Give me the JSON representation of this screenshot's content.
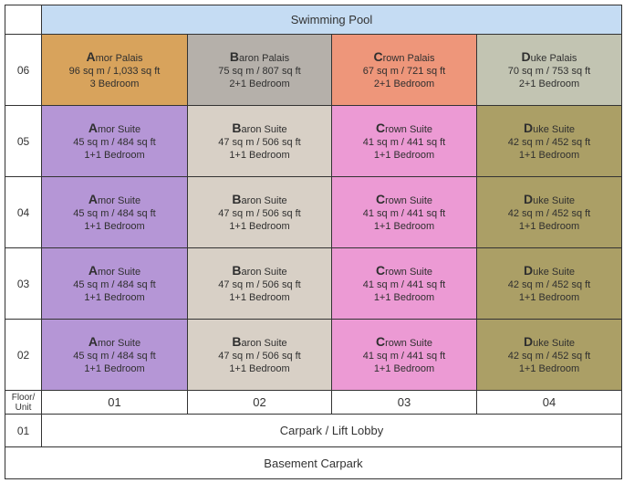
{
  "pool_label": "Swimming Pool",
  "floors": [
    "06",
    "05",
    "04",
    "03",
    "02"
  ],
  "floor_unit_header": [
    "Floor/",
    "Unit"
  ],
  "unit_numbers": [
    "01",
    "02",
    "03",
    "04"
  ],
  "rows": [
    [
      {
        "initial": "A",
        "rest": "mor Palais",
        "size": "96 sq m / 1,033 sq ft",
        "bedrooms": "3 Bedroom",
        "color": "#d8a35c"
      },
      {
        "initial": "B",
        "rest": "aron Palais",
        "size": "75 sq m / 807 sq ft",
        "bedrooms": "2+1 Bedroom",
        "color": "#b5b0aa"
      },
      {
        "initial": "C",
        "rest": "rown Palais",
        "size": "67 sq m / 721 sq ft",
        "bedrooms": "2+1 Bedroom",
        "color": "#ee967a"
      },
      {
        "initial": "D",
        "rest": "uke Palais",
        "size": "70 sq m / 753 sq ft",
        "bedrooms": "2+1 Bedroom",
        "color": "#c2c4b2"
      }
    ],
    [
      {
        "initial": "A",
        "rest": "mor Suite",
        "size": "45 sq m / 484 sq ft",
        "bedrooms": "1+1 Bedroom",
        "color": "#b596d6"
      },
      {
        "initial": "B",
        "rest": "aron Suite",
        "size": "47 sq m / 506 sq ft",
        "bedrooms": "1+1 Bedroom",
        "color": "#d8d0c6"
      },
      {
        "initial": "C",
        "rest": "rown Suite",
        "size": "41 sq m / 441 sq ft",
        "bedrooms": "1+1 Bedroom",
        "color": "#ec9ad4"
      },
      {
        "initial": "D",
        "rest": "uke Suite",
        "size": "42 sq m / 452 sq ft",
        "bedrooms": "1+1 Bedroom",
        "color": "#ab9f66"
      }
    ],
    [
      {
        "initial": "A",
        "rest": "mor Suite",
        "size": "45 sq m / 484 sq ft",
        "bedrooms": "1+1 Bedroom",
        "color": "#b596d6"
      },
      {
        "initial": "B",
        "rest": "aron Suite",
        "size": "47 sq m / 506 sq ft",
        "bedrooms": "1+1 Bedroom",
        "color": "#d8d0c6"
      },
      {
        "initial": "C",
        "rest": "rown Suite",
        "size": "41 sq m / 441 sq ft",
        "bedrooms": "1+1 Bedroom",
        "color": "#ec9ad4"
      },
      {
        "initial": "D",
        "rest": "uke Suite",
        "size": "42 sq m / 452 sq ft",
        "bedrooms": "1+1 Bedroom",
        "color": "#ab9f66"
      }
    ],
    [
      {
        "initial": "A",
        "rest": "mor Suite",
        "size": "45 sq m / 484 sq ft",
        "bedrooms": "1+1 Bedroom",
        "color": "#b596d6"
      },
      {
        "initial": "B",
        "rest": "aron Suite",
        "size": "47 sq m / 506 sq ft",
        "bedrooms": "1+1 Bedroom",
        "color": "#d8d0c6"
      },
      {
        "initial": "C",
        "rest": "rown Suite",
        "size": "41 sq m / 441 sq ft",
        "bedrooms": "1+1 Bedroom",
        "color": "#ec9ad4"
      },
      {
        "initial": "D",
        "rest": "uke Suite",
        "size": "42 sq m / 452 sq ft",
        "bedrooms": "1+1 Bedroom",
        "color": "#ab9f66"
      }
    ],
    [
      {
        "initial": "A",
        "rest": "mor Suite",
        "size": "45 sq m / 484 sq ft",
        "bedrooms": "1+1 Bedroom",
        "color": "#b596d6"
      },
      {
        "initial": "B",
        "rest": "aron Suite",
        "size": "47 sq m / 506 sq ft",
        "bedrooms": "1+1 Bedroom",
        "color": "#d8d0c6"
      },
      {
        "initial": "C",
        "rest": "rown Suite",
        "size": "41 sq m / 441 sq ft",
        "bedrooms": "1+1 Bedroom",
        "color": "#ec9ad4"
      },
      {
        "initial": "D",
        "rest": "uke Suite",
        "size": "42 sq m / 452 sq ft",
        "bedrooms": "1+1 Bedroom",
        "color": "#ab9f66"
      }
    ]
  ],
  "ground_floor": "01",
  "ground_label": "Carpark / Lift Lobby",
  "basement_label": "Basement Carpark",
  "pool_color": "#c5dcf3"
}
